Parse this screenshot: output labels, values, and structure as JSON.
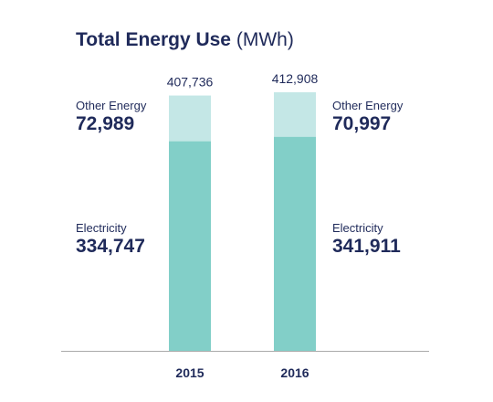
{
  "header": {
    "title": "Total Energy Use",
    "unit": "(MWh)"
  },
  "chart_data": {
    "type": "bar",
    "stacked": true,
    "title": "Total Energy Use (MWh)",
    "categories": [
      "2015",
      "2016"
    ],
    "totals": [
      "407,736",
      "412,908"
    ],
    "series": [
      {
        "name": "Electricity",
        "values": [
          334747,
          341911
        ],
        "labels": [
          "334,747",
          "341,911"
        ],
        "color": "#82cfc8"
      },
      {
        "name": "Other Energy",
        "values": [
          72989,
          70997
        ],
        "labels": [
          "72,989",
          "70,997"
        ],
        "color": "#c4e7e6"
      }
    ],
    "ylim": [
      0,
      412908
    ],
    "grid": false,
    "axis_color": "#aaaaaa"
  }
}
